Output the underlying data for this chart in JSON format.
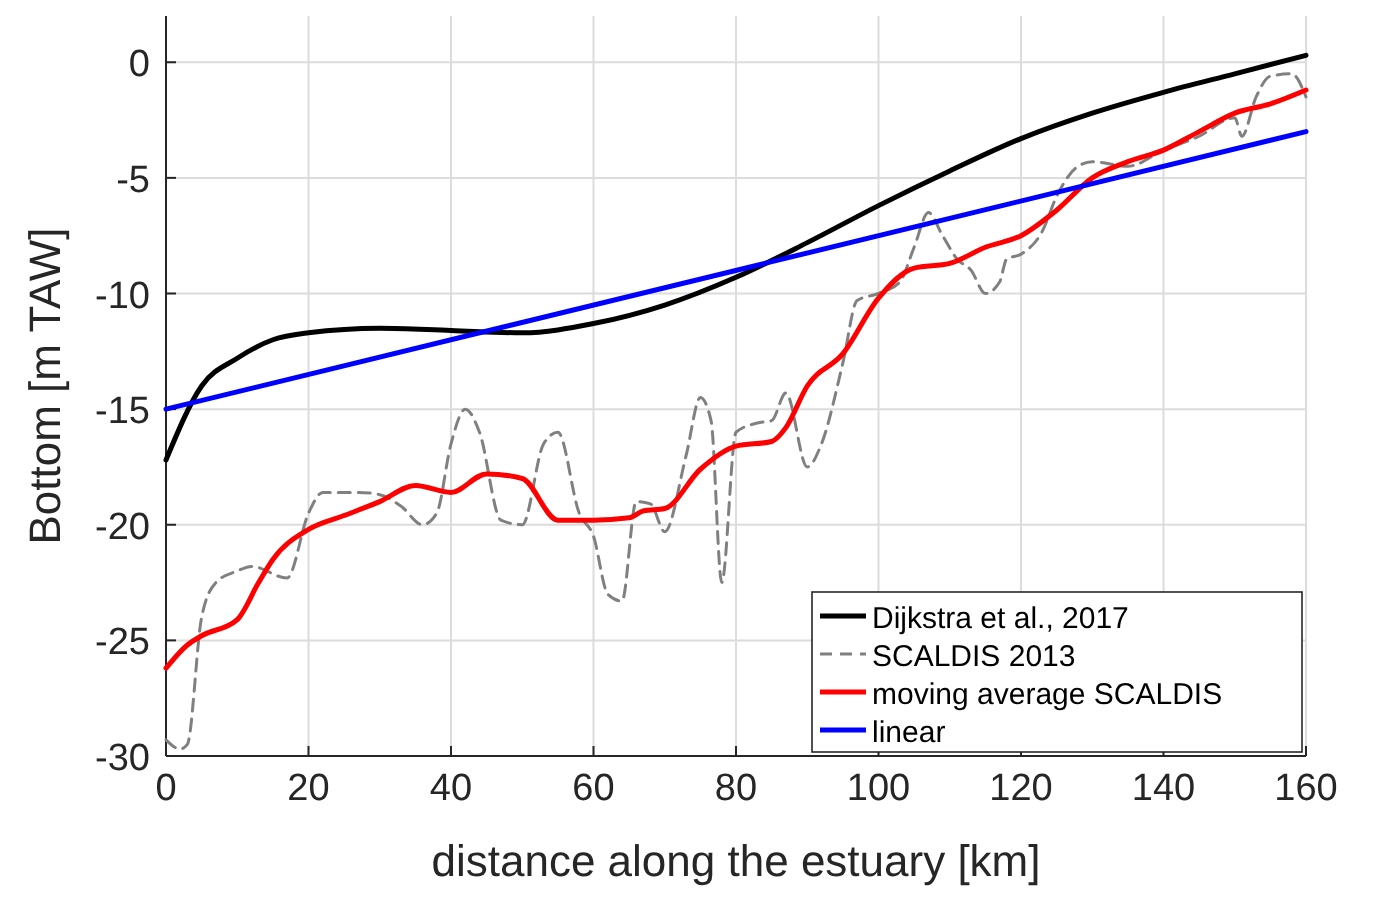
{
  "chart_data": {
    "type": "line",
    "xlabel": "distance along the estuary [km]",
    "ylabel": "Bottom [m TAW]",
    "xlim": [
      0,
      160
    ],
    "ylim": [
      -30,
      2
    ],
    "xticks": [
      0,
      20,
      40,
      60,
      80,
      100,
      120,
      140,
      160
    ],
    "yticks": [
      -30,
      -25,
      -20,
      -15,
      -10,
      -5,
      0
    ],
    "grid": true,
    "legend": "bottom right",
    "series": [
      {
        "name": "Dijkstra et al., 2017",
        "color": "#000000",
        "line_style": "solid",
        "x": [
          0,
          5,
          10,
          15,
          20,
          30,
          40,
          50,
          60,
          70,
          80,
          90,
          100,
          110,
          120,
          130,
          140,
          150,
          160
        ],
        "values": [
          -17.2,
          -14,
          -12.8,
          -12,
          -11.7,
          -11.5,
          -11.6,
          -11.7,
          -11.3,
          -10.5,
          -9.3,
          -7.8,
          -6.2,
          -4.7,
          -3.3,
          -2.2,
          -1.3,
          -0.5,
          0.3
        ]
      },
      {
        "name": "SCALDIS 2013",
        "color": "#808080",
        "line_style": "dashed",
        "x": [
          0,
          2,
          3,
          5,
          7,
          10,
          12,
          17,
          20,
          22,
          27,
          30,
          33,
          36,
          38,
          40,
          42,
          44,
          47,
          50,
          53,
          55,
          58,
          60,
          62,
          64,
          66,
          68,
          70,
          73,
          75,
          76.5,
          78,
          80,
          83,
          85,
          87,
          90,
          92,
          95,
          97,
          100,
          103,
          105,
          107,
          109,
          111,
          113,
          115,
          117,
          118,
          120,
          123,
          125,
          128,
          130,
          135,
          140,
          145,
          150,
          151,
          153,
          155,
          158,
          160
        ],
        "values": [
          -29.3,
          -29.7,
          -29.5,
          -24,
          -22.5,
          -22,
          -21.8,
          -22.3,
          -19.5,
          -18.6,
          -18.6,
          -18.7,
          -19.2,
          -20,
          -19.5,
          -16.5,
          -15,
          -16,
          -19.8,
          -20,
          -16.5,
          -16,
          -19.5,
          -20.5,
          -23,
          -23.3,
          -19,
          -19.1,
          -20.3,
          -17,
          -14.5,
          -15.5,
          -22.5,
          -16,
          -15.6,
          -15.5,
          -14.3,
          -17.5,
          -16.5,
          -13,
          -10.3,
          -10,
          -9.5,
          -8,
          -6.5,
          -7.5,
          -8.5,
          -9,
          -10,
          -9.5,
          -8.5,
          -8.3,
          -7.3,
          -5.8,
          -4.5,
          -4.3,
          -4.5,
          -3.8,
          -3.2,
          -2.4,
          -3.2,
          -1.5,
          -0.6,
          -0.5,
          -1.5
        ]
      },
      {
        "name": "moving average SCALDIS",
        "color": "#ff0000",
        "line_style": "solid",
        "x": [
          0,
          3,
          5,
          10,
          13,
          15,
          20,
          25,
          30,
          35,
          40,
          45,
          50,
          55,
          60,
          65,
          67,
          70,
          75,
          80,
          85,
          87,
          90,
          95,
          100,
          105,
          110,
          115,
          120,
          125,
          130,
          135,
          140,
          145,
          150,
          155,
          160
        ],
        "values": [
          -26.2,
          -25.2,
          -24.8,
          -24.1,
          -22.5,
          -21.5,
          -20.2,
          -19.6,
          -19,
          -18.3,
          -18.6,
          -17.8,
          -18,
          -19.8,
          -19.8,
          -19.7,
          -19.4,
          -19.3,
          -17.6,
          -16.6,
          -16.4,
          -15.8,
          -14,
          -12.6,
          -10.2,
          -8.9,
          -8.7,
          -8,
          -7.5,
          -6.4,
          -5,
          -4.3,
          -3.8,
          -3,
          -2.2,
          -1.8,
          -1.2
        ]
      },
      {
        "name": "linear",
        "color": "#0000ff",
        "line_style": "solid",
        "x": [
          0,
          160
        ],
        "values": [
          -15,
          -3
        ]
      }
    ]
  }
}
